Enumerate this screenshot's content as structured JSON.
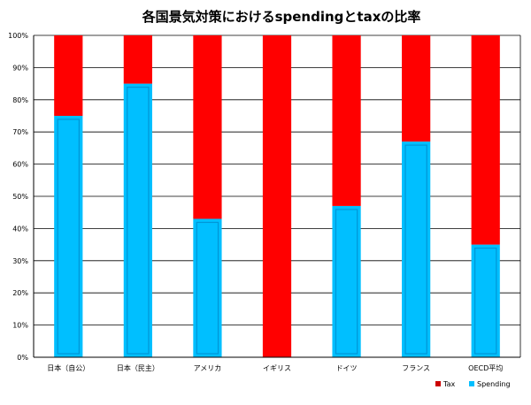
{
  "chart_data": {
    "type": "bar",
    "stacked": true,
    "title": "各国景気対策におけるspendingとtaxの比率",
    "categories": [
      "日本（自公）",
      "日本（民主）",
      "アメリカ",
      "イギリス",
      "ドイツ",
      "フランス",
      "OECD平均"
    ],
    "series": [
      {
        "name": "Spending",
        "color": "#00BFFF",
        "values": [
          75,
          85,
          43,
          0,
          47,
          67,
          35
        ]
      },
      {
        "name": "Tax",
        "color": "#FF0000",
        "values": [
          25,
          15,
          57,
          100,
          53,
          33,
          65
        ]
      }
    ],
    "ylim": [
      0,
      100
    ],
    "yticks": [
      "0%",
      "10%",
      "20%",
      "30%",
      "40%",
      "50%",
      "60%",
      "70%",
      "80%",
      "90%",
      "100%"
    ],
    "grid": true,
    "legend": [
      {
        "label": "Tax",
        "color": "#CC0000"
      },
      {
        "label": "Spending",
        "color": "#00BFFF"
      }
    ],
    "legend_position": "bottom-right"
  }
}
